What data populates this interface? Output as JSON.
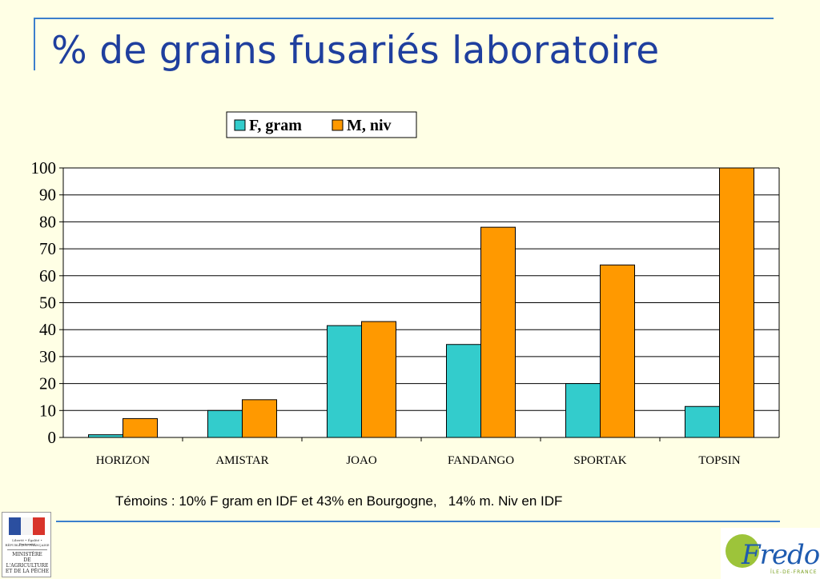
{
  "title": "% de grains fusariés laboratoire",
  "note": "Témoins : 10% F gram en IDF et 43% en Bourgogne,   14% m. Niv en IDF",
  "chart_data": {
    "type": "bar",
    "categories": [
      "HORIZON",
      "AMISTAR",
      "JOAO",
      "FANDANGO",
      "SPORTAK",
      "TOPSIN"
    ],
    "series": [
      {
        "name": "F, gram",
        "color": "#33CCCC",
        "values": [
          1,
          10,
          41.5,
          34.5,
          20,
          11.5
        ]
      },
      {
        "name": "M, niv",
        "color": "#FF9900",
        "values": [
          7,
          14,
          43,
          78,
          64,
          100
        ]
      }
    ],
    "ylim": [
      0,
      100
    ],
    "yticks": [
      0,
      10,
      20,
      30,
      40,
      50,
      60,
      70,
      80,
      90,
      100
    ],
    "grid": true,
    "legend": "top-center"
  },
  "logos": {
    "ministry": {
      "motto": "Liberté • Égalité • Fraternité",
      "republic": "RÉPUBLIQUE FRANÇAISE",
      "name": "MINISTÈRE\nDE L'AGRICULTURE\nET DE LA PÊCHE"
    },
    "fredon": {
      "name": "Fredon",
      "sub": "ÎLE-DE-FRANCE"
    }
  }
}
